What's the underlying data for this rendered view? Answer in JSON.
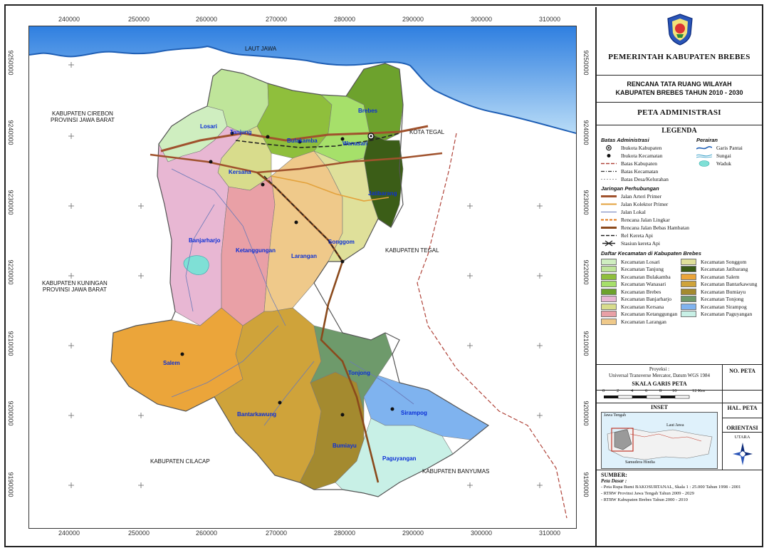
{
  "colors": {
    "sea": "#4d94e6",
    "sea_light": "#a7d0f5",
    "losari": "#cfeec0",
    "tanjung": "#bfe59a",
    "bulakamba": "#8fbf3c",
    "wanasari": "#a6e06a",
    "brebes": "#6da22d",
    "jatibarang": "#3b5d17",
    "banjarharjo": "#e8b7d3",
    "ketanggungan": "#e9a0a6",
    "kersana": "#d8dc8c",
    "larangan": "#efc98a",
    "songgom": "#dfe09a",
    "salem": "#eba53a",
    "bantarkawung": "#cfa33a",
    "bumiayu": "#a48a2f",
    "tonjong": "#6e9a6b",
    "sirampog": "#7fb3ef",
    "paguyangan": "#c8f0e6",
    "road_arteri": "#a0522d",
    "road_kolektor": "#e3a23c",
    "road_lokal": "#6a7ab8"
  },
  "map": {
    "x_ticks": [
      "240000",
      "250000",
      "260000",
      "270000",
      "280000",
      "290000",
      "300000",
      "310000"
    ],
    "y_ticks": [
      "9250000",
      "9240000",
      "9230000",
      "9220000",
      "9210000",
      "9200000",
      "9190000"
    ],
    "labels": {
      "sea": "LAUT JAWA",
      "cirebon_1": "KABUPATEN CIREBON",
      "cirebon_2": "PROVINSI JAWA BARAT",
      "kota_tegal": "KOTA TEGAL",
      "kab_tegal": "KABUPATEN TEGAL",
      "kuningan_1": "KABUPATEN KUNINGAN",
      "kuningan_2": "PROVINSI JAWA BARAT",
      "cilacap": "KABUPATEN CILACAP",
      "banyumas": "KABUPATEN BANYUMAS"
    },
    "kecamatan": {
      "losari": "Losari",
      "tanjung": "Tanjung",
      "bulakamba": "Bulakamba",
      "wanasari": "Wanasari",
      "brebes": "Brebes",
      "jatibarang": "Jatibarang",
      "kersana": "Kersana",
      "banjarharjo": "Banjarharjo",
      "ketanggungan": "Ketanggungan",
      "larangan": "Larangan",
      "songgom": "Songgom",
      "salem": "Salem",
      "bantarkawung": "Bantarkawung",
      "tonjong": "Tonjong",
      "sirampog": "Sirampog",
      "bumiayu": "Bumiayu",
      "paguyangan": "Paguyangan"
    }
  },
  "panel": {
    "gov_title": "PEMERINTAH KABUPATEN BREBES",
    "plan_title_1": "RENCANA TATA RUANG WILAYAH",
    "plan_title_2": "KABUPATEN BREBES TAHUN 2010 - 2030",
    "map_title": "PETA ADMINISTRASI",
    "legend_title": "LEGENDA",
    "batas_title": "Batas Administrasi",
    "batas_items": [
      "Ibukota Kabupaten",
      "Ibukota Kecamatan",
      "Batas Kabupaten",
      "Batas Kecamatan",
      "Batas Desa/Kelurahan"
    ],
    "perairan_title": "Perairan",
    "perairan_items": [
      "Garis Pantai",
      "Sungai",
      "Waduk"
    ],
    "jaringan_title": "Jaringan Perhubungan",
    "jaringan_items": [
      "Jalan Arteri Primer",
      "Jalan Kolektor Primer",
      "Jalan Lokal",
      "Rencana Jalan Lingkar",
      "Rencana Jalan Bebas Hambatan",
      "Rel Kereta Api",
      "Stasiun kereta Api"
    ],
    "daftar_title": "Daftar Kecamatan di Kabupaten Brebes",
    "daftar_left": [
      "Kecamatan Losari",
      "Kecamatan Tanjung",
      "Kecamatan Bulakamba",
      "Kecamatan Wanasari",
      "Kecamatan Brebes",
      "Kecamatan Banjarharjo",
      "Kecamatan Kersana",
      "Kecamatan Ketanggungan",
      "Kecamatan Larangan"
    ],
    "daftar_right": [
      "Kecamatan Songgom",
      "Kecamatan Jatibarang",
      "Kecamatan Salem",
      "Kecamatan Bantarkawung",
      "Kecamatan Bumiayu",
      "Kecamatan Tonjong",
      "Kecamatan Sirampog",
      "Kecamatan Paguyangan"
    ],
    "proyeksi_1": "Proyeksi :",
    "proyeksi_2": "Universal Transverse Mercator, Datum WGS 1984",
    "no_peta": "NO. PETA",
    "skala": "SKALA  GARIS PETA",
    "scale_ticks": [
      "0",
      "2",
      "4",
      "6",
      "8",
      "10",
      "12 Km"
    ],
    "inset": "INSET",
    "hal_peta": "HAL. PETA",
    "inset_labels": [
      "Jawa Tengah",
      "Laut Jawa",
      "Samudera Hindia"
    ],
    "orientasi": "ORIENTASI",
    "utara": "UTARA",
    "sumber": "SUMBER:",
    "peta_dasar": "Peta Dasar :",
    "sources": [
      "- Peta Rupa Bumi BAKOSURTANAL, Skala 1 : 25.000 Tahun 1998 - 2001",
      "- RTRW Provinsi Jawa Tengah Tahun 2009 - 2029",
      "- RTRW Kabupaten Brebes Tahun 2000 - 2010"
    ]
  }
}
